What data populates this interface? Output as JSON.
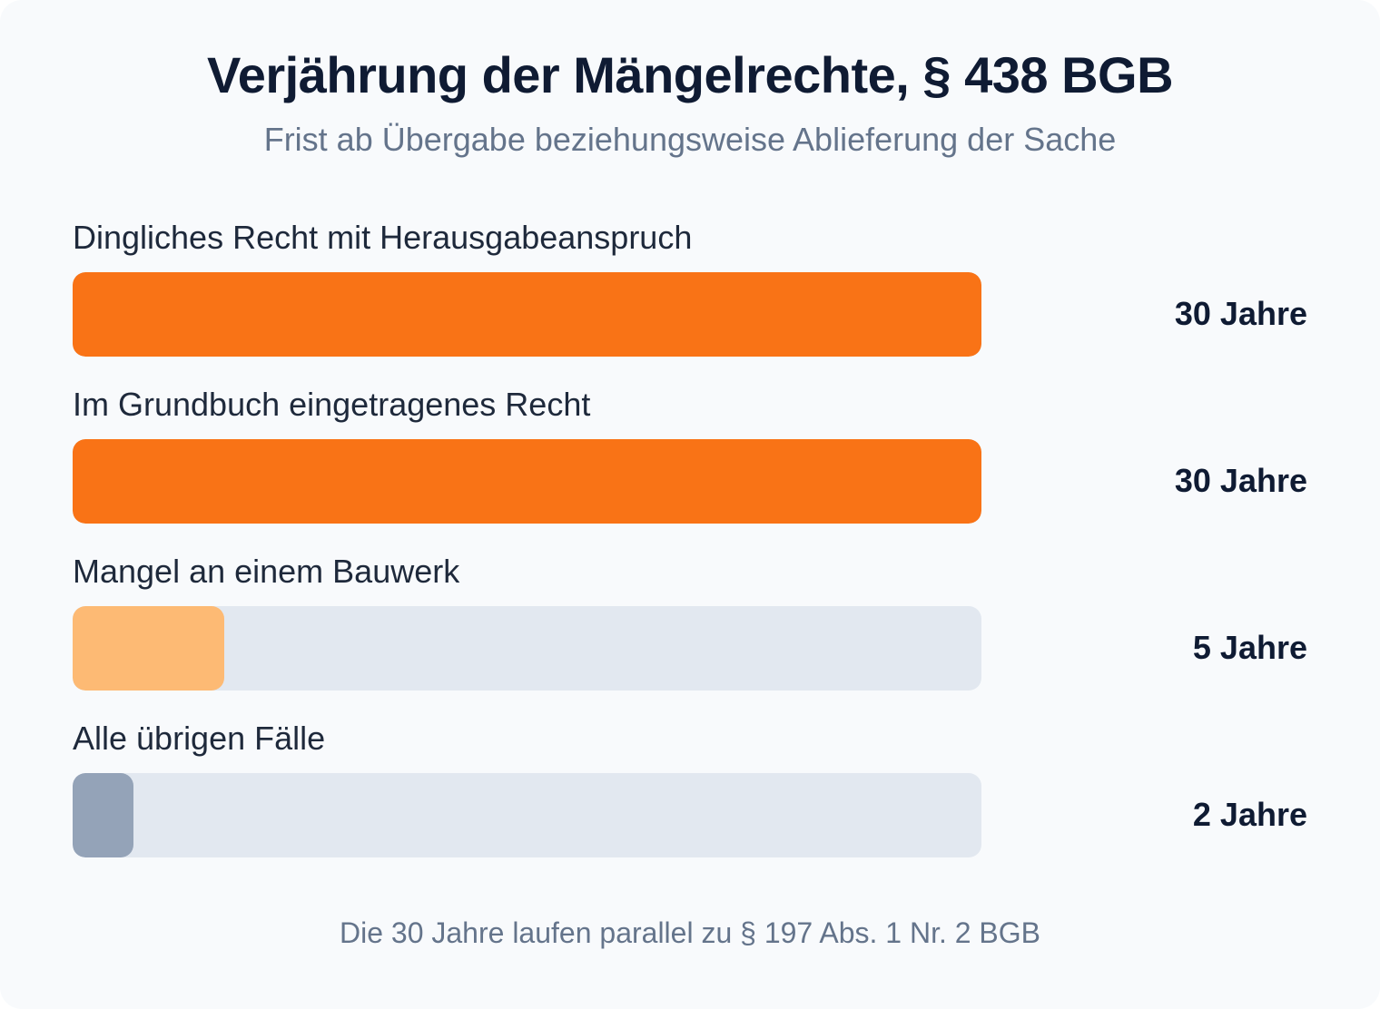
{
  "chart_data": {
    "type": "bar",
    "orientation": "horizontal",
    "title": "Verjährung der Mängelrechte, § 438 BGB",
    "subtitle": "Frist ab Übergabe beziehungsweise Ablieferung der Sache",
    "xlim": [
      0,
      30
    ],
    "grid": false,
    "categories": [
      "Dingliches Recht mit Herausgabeanspruch",
      "Im Grundbuch eingetragenes Recht",
      "Mangel an einem Bauwerk",
      "Alle übrigen Fälle"
    ],
    "values": [
      30,
      30,
      5,
      2
    ],
    "value_labels": [
      "30 Jahre",
      "30 Jahre",
      "5 Jahre",
      "2 Jahre"
    ],
    "bar_colors": [
      "#f97316",
      "#f97316",
      "#fdba74",
      "#94a3b8"
    ],
    "track_color": "#e2e8f0",
    "footnote": "Die 30 Jahre laufen parallel zu § 197 Abs. 1 Nr. 2 BGB"
  }
}
